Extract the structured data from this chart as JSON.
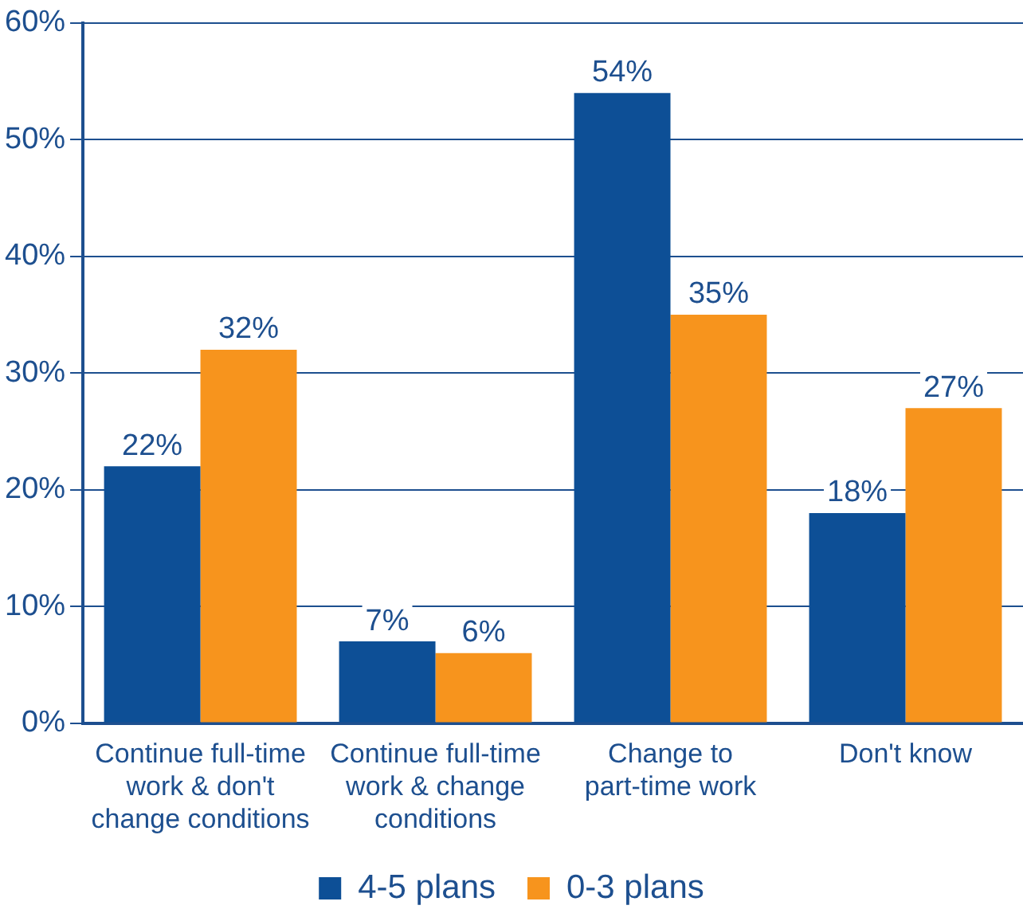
{
  "chart_data": {
    "type": "bar",
    "categories": [
      "Continue full-time work & don't change conditions",
      "Continue full-time work & change conditions",
      "Change to part-time work",
      "Don't know"
    ],
    "series": [
      {
        "name": "4-5 plans",
        "color": "#0d4f96",
        "values": [
          22,
          7,
          54,
          18
        ],
        "value_labels": [
          "22%",
          "7%",
          "54%",
          "18%"
        ]
      },
      {
        "name": "0-3 plans",
        "color": "#f7941d",
        "values": [
          32,
          6,
          35,
          27
        ],
        "value_labels": [
          "32%",
          "6%",
          "35%",
          "27%"
        ]
      }
    ],
    "ylim": [
      0,
      60
    ],
    "yticks": [
      {
        "value": 0,
        "label": "0%"
      },
      {
        "value": 10,
        "label": "10%"
      },
      {
        "value": 20,
        "label": "20%"
      },
      {
        "value": 30,
        "label": "30%"
      },
      {
        "value": 40,
        "label": "40%"
      },
      {
        "value": 50,
        "label": "50%"
      },
      {
        "value": 60,
        "label": "60%"
      }
    ],
    "grid": "y",
    "legend": "bottom"
  }
}
